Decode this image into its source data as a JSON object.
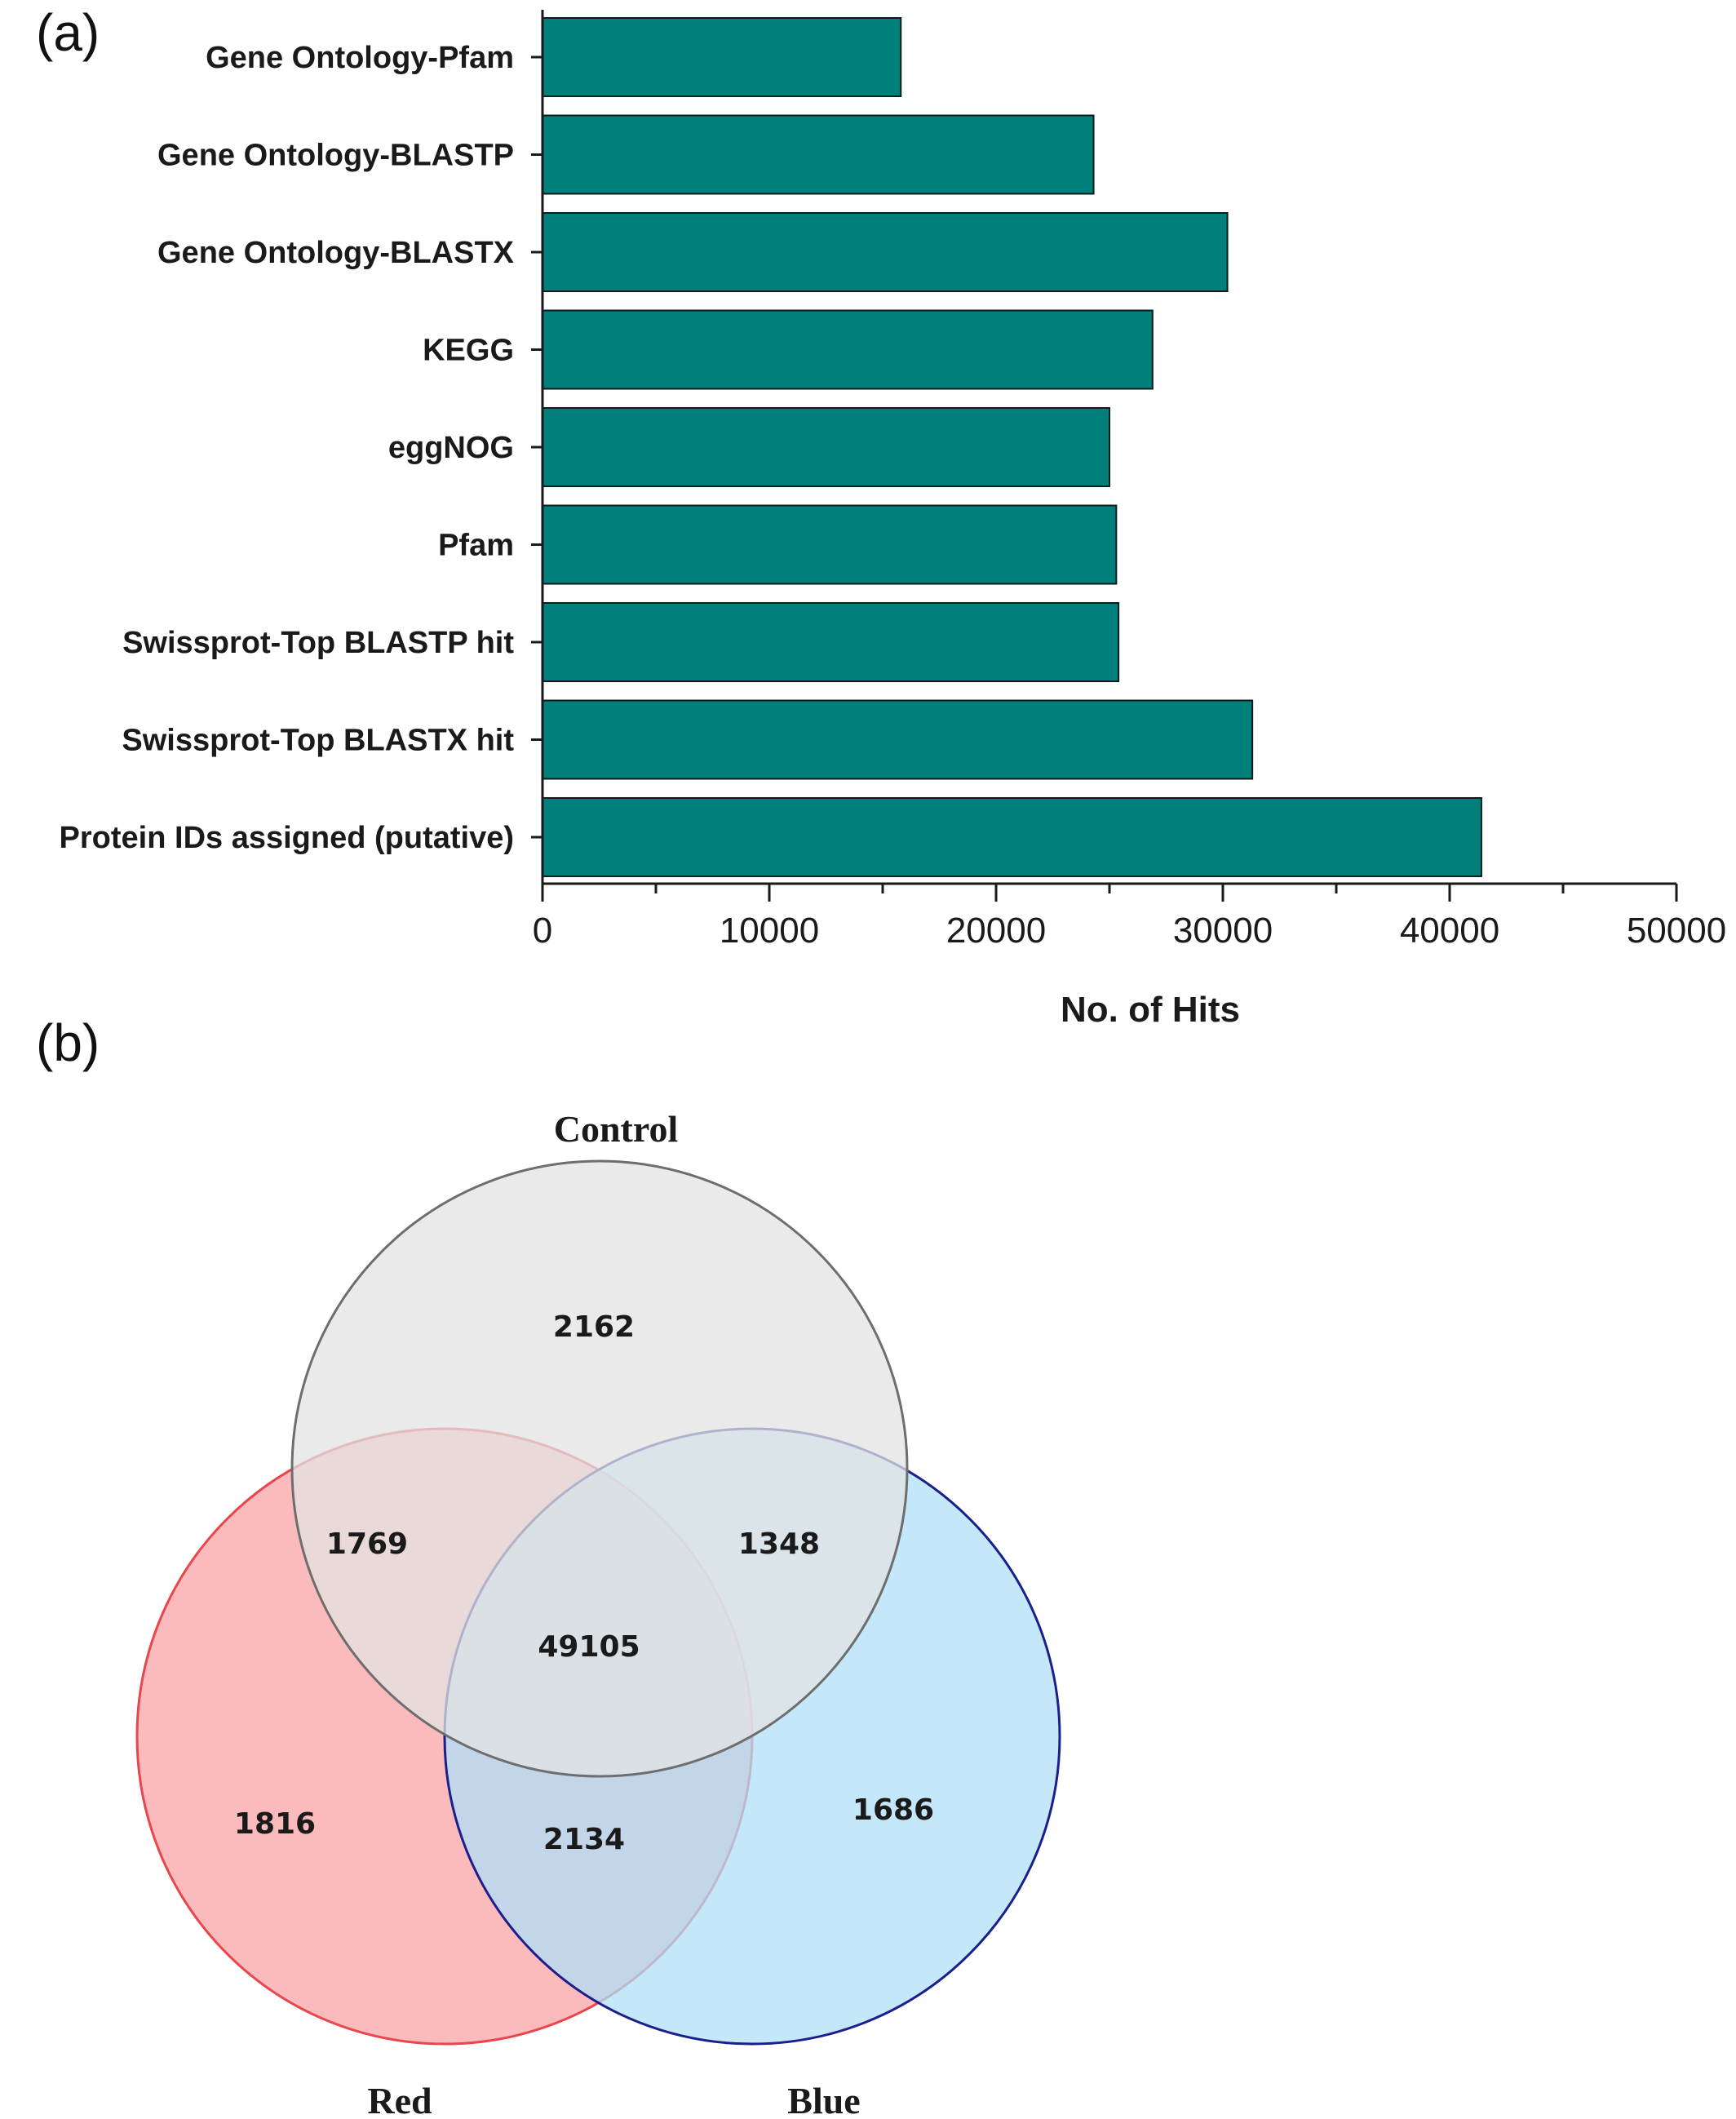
{
  "panels": {
    "a_label": "(a)",
    "b_label": "(b)"
  },
  "chart_data": [
    {
      "type": "bar",
      "orientation": "horizontal",
      "categories": [
        "Gene Ontology-Pfam",
        "Gene Ontology-BLASTP",
        "Gene Ontology-BLASTX",
        "KEGG",
        "eggNOG",
        "Pfam",
        "Swissprot-Top BLASTP hit",
        "Swissprot-Top BLASTX hit",
        "Protein IDs assigned (putative)"
      ],
      "values": [
        15800,
        24300,
        30200,
        26900,
        25000,
        25300,
        25400,
        31300,
        41400
      ],
      "xlabel": "No. of Hits",
      "ylabel": "",
      "xlim": [
        0,
        50000
      ],
      "xticks": [
        0,
        10000,
        20000,
        30000,
        40000,
        50000
      ],
      "xtick_labels": [
        "0",
        "10000",
        "20000",
        "30000",
        "40000",
        "50000"
      ],
      "bar_color": "#007f7b",
      "grid": false
    },
    {
      "type": "venn",
      "sets": [
        "Control",
        "Red",
        "Blue"
      ],
      "colors": {
        "Control": "#e3e3e3",
        "Red": "#f9a3a6",
        "Blue": "#b0dff8"
      },
      "regions": {
        "control_only": "2162",
        "control_red": "1769",
        "control_blue": "1348",
        "all": "49105",
        "red_only": "1816",
        "red_blue": "2134",
        "blue_only": "1686"
      }
    }
  ]
}
